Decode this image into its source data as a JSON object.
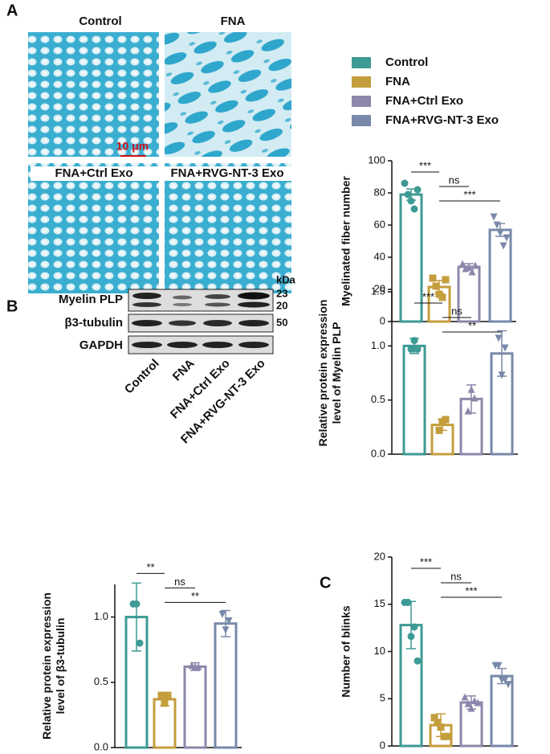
{
  "figure": {
    "panel_labels": [
      "A",
      "B",
      "C"
    ],
    "micrographs": [
      "Control",
      "FNA",
      "FNA+Ctrl Exo",
      "FNA+RVG-NT-3 Exo"
    ],
    "scale_bar": "10 μm",
    "blot": {
      "rows": [
        "Myelin PLP",
        "β3-tubulin",
        "GAPDH"
      ],
      "unit": "kDa",
      "sizes": [
        "23",
        "20",
        "50"
      ],
      "lanes": [
        "Control",
        "FNA",
        "FNA+Ctrl Exo",
        "FNA+RVG-NT-3 Exo"
      ]
    }
  },
  "chart_data": [
    {
      "type": "bar",
      "y_label": [
        "Myelinated fiber number"
      ],
      "legend": [
        "Control",
        "FNA",
        "FNA+Ctrl Exo",
        "FNA+RVG-NT-3 Exo"
      ],
      "colors": [
        "#3d9a94",
        "#c49e3c",
        "#8c87ab",
        "#7889a9"
      ],
      "values": [
        79,
        21.5,
        34,
        57
      ],
      "errors": [
        3.5,
        4,
        2,
        4
      ],
      "points": [
        [
          86,
          79,
          75,
          70,
          82
        ],
        [
          27,
          22,
          17,
          15,
          26
        ],
        [
          36,
          33,
          34,
          31,
          35
        ],
        [
          65,
          60,
          55,
          47,
          52
        ]
      ],
      "annotations": [
        "***",
        "ns",
        "***"
      ],
      "ylim": [
        0,
        100
      ],
      "yticks": [
        0,
        20,
        40,
        60,
        80,
        100
      ]
    },
    {
      "type": "bar",
      "y_label": [
        "Relative protein expression",
        "level of Myelin PLP"
      ],
      "colors": [
        "#3d9a94",
        "#c49e3c",
        "#8c87ab",
        "#7889a9"
      ],
      "values": [
        1.0,
        0.27,
        0.51,
        0.93
      ],
      "errors": [
        0.07,
        0.05,
        0.13,
        0.21
      ],
      "points": [
        [
          0.97,
          1.05,
          0.97
        ],
        [
          0.22,
          0.3,
          0.32
        ],
        [
          0.4,
          0.6,
          0.52
        ],
        [
          1.07,
          0.73,
          0.98
        ]
      ],
      "annotations": [
        "***",
        "ns",
        "**"
      ],
      "ylim": [
        0,
        1.5
      ],
      "yticks": [
        {
          "value": 0,
          "label": "0.0"
        },
        {
          "value": 0.5,
          "label": "0.5"
        },
        {
          "value": 1,
          "label": "1.0"
        },
        {
          "value": 1.5,
          "label": "1.5"
        }
      ]
    },
    {
      "type": "bar",
      "y_label": [
        "Relative protein expression",
        "level of β3-tubulin"
      ],
      "colors": [
        "#3d9a94",
        "#c49e3c",
        "#8c87ab",
        "#7889a9"
      ],
      "values": [
        1.0,
        0.37,
        0.62,
        0.95
      ],
      "errors": [
        0.26,
        0.05,
        0.03,
        0.1
      ],
      "points": [
        [
          1.1,
          1.1,
          0.8
        ],
        [
          0.4,
          0.34,
          0.4
        ],
        [
          0.63,
          0.62,
          0.62
        ],
        [
          1.02,
          0.9,
          0.97
        ]
      ],
      "annotations": [
        "**",
        "ns",
        "**"
      ],
      "ylim": [
        0,
        1.25
      ],
      "yticks": [
        {
          "value": 0,
          "label": "0.0"
        },
        {
          "value": 0.5,
          "label": "0.5"
        },
        {
          "value": 1,
          "label": "1.0"
        }
      ]
    },
    {
      "type": "bar",
      "y_label": [
        "Number of blinks"
      ],
      "colors": [
        "#3d9a94",
        "#c49e3c",
        "#8c87ab",
        "#7889a9"
      ],
      "values": [
        12.8,
        2.2,
        4.6,
        7.4
      ],
      "errors": [
        2.5,
        1.2,
        0.7,
        0.8
      ],
      "points": [
        [
          15.2,
          15.2,
          11.6,
          12.6,
          9
        ],
        [
          3,
          2.5,
          2,
          1,
          1
        ],
        [
          5.2,
          4.5,
          4,
          4.8,
          4.6
        ],
        [
          8.5,
          8.5,
          7,
          7,
          6.5
        ]
      ],
      "annotations": [
        "***",
        "ns",
        "***"
      ],
      "ylim": [
        0,
        20
      ],
      "yticks": [
        0,
        5,
        10,
        15,
        20
      ]
    }
  ]
}
